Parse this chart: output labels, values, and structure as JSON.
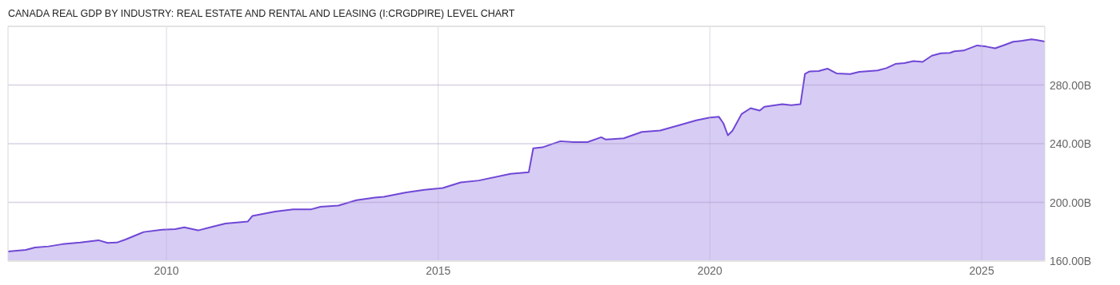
{
  "chart_data": {
    "type": "area",
    "title": "CANADA REAL GDP BY INDUSTRY: REAL ESTATE AND RENTAL AND LEASING (I:CRGDPIRE) LEVEL CHART",
    "x": [
      "2007-02",
      "2007-06",
      "2007-08",
      "2007-11",
      "2008-02",
      "2008-06",
      "2008-10",
      "2008-12",
      "2009-02",
      "2009-04",
      "2009-07",
      "2009-08",
      "2009-12",
      "2010-03",
      "2010-05",
      "2010-08",
      "2010-11",
      "2011-02",
      "2011-07",
      "2011-08",
      "2012-01",
      "2012-05",
      "2012-09",
      "2012-11",
      "2013-03",
      "2013-07",
      "2013-11",
      "2014-01",
      "2014-06",
      "2014-10",
      "2015-02",
      "2015-06",
      "2015-10",
      "2016-05",
      "2016-09",
      "2016-10",
      "2016-12",
      "2017-04",
      "2017-07",
      "2017-10",
      "2018-01",
      "2018-02",
      "2018-06",
      "2018-10",
      "2019-02",
      "2019-06",
      "2019-10",
      "2020-01",
      "2020-03",
      "2020-04",
      "2020-05",
      "2020-06",
      "2020-08",
      "2020-10",
      "2020-12",
      "2021-01",
      "2021-05",
      "2021-07",
      "2021-09",
      "2021-10",
      "2021-11",
      "2022-01",
      "2022-03",
      "2022-05",
      "2022-08",
      "2022-10",
      "2023-02",
      "2023-04",
      "2023-06",
      "2023-08",
      "2023-10",
      "2023-12",
      "2024-02",
      "2024-04",
      "2024-06",
      "2024-07",
      "2024-09",
      "2024-12",
      "2025-02",
      "2025-04",
      "2025-06",
      "2025-08",
      "2025-10",
      "2025-12",
      "2026-01",
      "2026-03"
    ],
    "series": [
      {
        "color": "#7047d6",
        "values": [
          166.5,
          167.6,
          169.3,
          170,
          171.5,
          172.6,
          174.2,
          172.4,
          172.6,
          174.7,
          178.5,
          179.8,
          181.3,
          181.8,
          183,
          180.9,
          183.3,
          185.6,
          186.9,
          190.7,
          193.7,
          195.3,
          195.3,
          197,
          197.8,
          201.5,
          203.3,
          203.8,
          206.8,
          208.6,
          209.8,
          213.6,
          214.9,
          219.5,
          220.6,
          236.9,
          237.5,
          241.7,
          241.1,
          241.1,
          244.4,
          242.8,
          243.7,
          248,
          249,
          252.4,
          255.9,
          257.8,
          258.4,
          253.9,
          245.7,
          248.8,
          260.2,
          264.2,
          262.6,
          265.2,
          267,
          266.2,
          267,
          287.5,
          289.3,
          289.5,
          291.2,
          287.9,
          287.5,
          289,
          289.9,
          291.5,
          294.4,
          295,
          296.3,
          295.8,
          300,
          301.6,
          301.9,
          303,
          303.5,
          307,
          306.2,
          305,
          307.2,
          309.5,
          310.2,
          311.2,
          310.8,
          309.7
        ]
      }
    ],
    "xlim": [
      "2007-02",
      "2026-03"
    ],
    "xticks": [
      "2010",
      "2015",
      "2020",
      "2025"
    ],
    "ylim": [
      160,
      320
    ],
    "yticks": [
      {
        "value": 160,
        "label": "160.00B"
      },
      {
        "value": 200,
        "label": "200.00B"
      },
      {
        "value": 240,
        "label": "240.00B"
      },
      {
        "value": 280,
        "label": "280.00B"
      }
    ],
    "grid": true
  }
}
